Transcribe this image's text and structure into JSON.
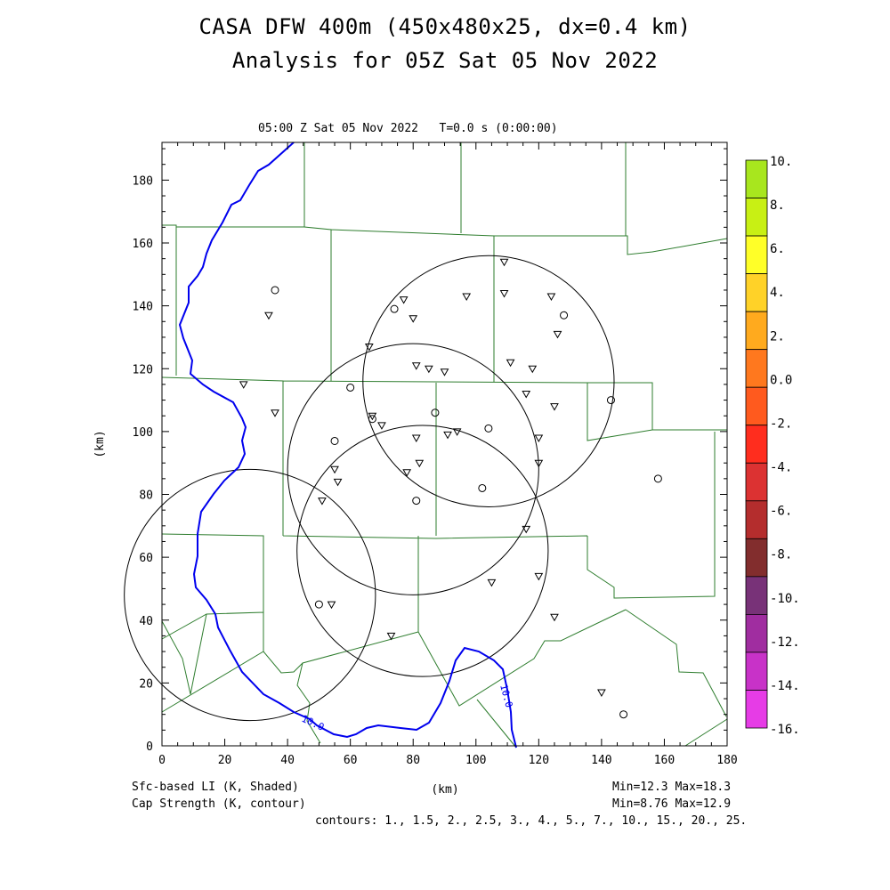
{
  "header": {
    "title_line1": "CASA DFW 400m (450x480x25, dx=0.4 km)",
    "title_line2": "Analysis for 05Z Sat 05 Nov 2022",
    "time_label": "05:00 Z Sat 05 Nov 2022",
    "t_label": "T=0.0 s (0:00:00)"
  },
  "axes": {
    "x_label": "(km)",
    "y_label": "(km)",
    "x_range": [
      0,
      180
    ],
    "y_range": [
      0,
      192
    ],
    "x_ticks": [
      "0",
      "20",
      "40",
      "60",
      "80",
      "100",
      "120",
      "140",
      "160",
      "180"
    ],
    "y_ticks": [
      "0",
      "20",
      "40",
      "60",
      "80",
      "100",
      "120",
      "140",
      "160",
      "180"
    ]
  },
  "colorbar": {
    "labels": [
      "10.",
      "8.",
      "6.",
      "4.",
      "2.",
      "0.0",
      "-2.",
      "-4.",
      "-6.",
      "-8.",
      "-10.",
      "-12.",
      "-14.",
      "-16."
    ],
    "colors": [
      "#a8e61e",
      "#c8f014",
      "#ffff28",
      "#ffd228",
      "#ffaa1e",
      "#ff781e",
      "#ff5a1e",
      "#ff2d1e",
      "#dc3232",
      "#b42d2d",
      "#822d2d",
      "#783278",
      "#a02da0",
      "#c832c8",
      "#e63ce6"
    ]
  },
  "footer": {
    "shaded_label": "Sfc-based LI (K, Shaded)",
    "contour_label": "Cap Strength (K, contour)",
    "li_minmax": "Min=12.3 Max=18.3",
    "cap_minmax": "Min=8.76 Max=12.9",
    "contours": "contours: 1., 1.5, 2., 2.5, 3., 4., 5., 7., 10., 15., 20., 25."
  },
  "map": {
    "contour_labels": [
      "10.0",
      "10.0"
    ],
    "radar_circles_center_km": [
      [
        28,
        48
      ],
      [
        80,
        88
      ],
      [
        104,
        116
      ],
      [
        83,
        62
      ]
    ],
    "radar_circle_radius_km": 40,
    "stations_km": [
      {
        "x": 36,
        "y": 145,
        "m": "c"
      },
      {
        "x": 34,
        "y": 137,
        "m": "t"
      },
      {
        "x": 26,
        "y": 115,
        "m": "t"
      },
      {
        "x": 36,
        "y": 106,
        "m": "t"
      },
      {
        "x": 60,
        "y": 114,
        "m": "c"
      },
      {
        "x": 55,
        "y": 97,
        "m": "c"
      },
      {
        "x": 55,
        "y": 88,
        "m": "t"
      },
      {
        "x": 56,
        "y": 84,
        "m": "t"
      },
      {
        "x": 51,
        "y": 78,
        "m": "t"
      },
      {
        "x": 50,
        "y": 45,
        "m": "c"
      },
      {
        "x": 54,
        "y": 45,
        "m": "t"
      },
      {
        "x": 73,
        "y": 35,
        "m": "t"
      },
      {
        "x": 66,
        "y": 127,
        "m": "t"
      },
      {
        "x": 67,
        "y": 105,
        "m": "t"
      },
      {
        "x": 67,
        "y": 104,
        "m": "c"
      },
      {
        "x": 70,
        "y": 102,
        "m": "t"
      },
      {
        "x": 74,
        "y": 139,
        "m": "c"
      },
      {
        "x": 77,
        "y": 142,
        "m": "t"
      },
      {
        "x": 80,
        "y": 136,
        "m": "t"
      },
      {
        "x": 81,
        "y": 121,
        "m": "t"
      },
      {
        "x": 85,
        "y": 120,
        "m": "t"
      },
      {
        "x": 90,
        "y": 119,
        "m": "t"
      },
      {
        "x": 87,
        "y": 106,
        "m": "c"
      },
      {
        "x": 81,
        "y": 98,
        "m": "t"
      },
      {
        "x": 91,
        "y": 99,
        "m": "t"
      },
      {
        "x": 94,
        "y": 100,
        "m": "t"
      },
      {
        "x": 78,
        "y": 87,
        "m": "t"
      },
      {
        "x": 82,
        "y": 90,
        "m": "t"
      },
      {
        "x": 81,
        "y": 78,
        "m": "c"
      },
      {
        "x": 97,
        "y": 143,
        "m": "t"
      },
      {
        "x": 109,
        "y": 154,
        "m": "t"
      },
      {
        "x": 109,
        "y": 144,
        "m": "t"
      },
      {
        "x": 124,
        "y": 143,
        "m": "t"
      },
      {
        "x": 128,
        "y": 137,
        "m": "c"
      },
      {
        "x": 126,
        "y": 131,
        "m": "t"
      },
      {
        "x": 111,
        "y": 122,
        "m": "t"
      },
      {
        "x": 118,
        "y": 120,
        "m": "t"
      },
      {
        "x": 116,
        "y": 112,
        "m": "t"
      },
      {
        "x": 125,
        "y": 108,
        "m": "t"
      },
      {
        "x": 104,
        "y": 101,
        "m": "c"
      },
      {
        "x": 120,
        "y": 98,
        "m": "t"
      },
      {
        "x": 120,
        "y": 90,
        "m": "t"
      },
      {
        "x": 102,
        "y": 82,
        "m": "c"
      },
      {
        "x": 116,
        "y": 69,
        "m": "t"
      },
      {
        "x": 105,
        "y": 52,
        "m": "t"
      },
      {
        "x": 120,
        "y": 54,
        "m": "t"
      },
      {
        "x": 125,
        "y": 41,
        "m": "t"
      },
      {
        "x": 143,
        "y": 110,
        "m": "c"
      },
      {
        "x": 158,
        "y": 85,
        "m": "c"
      },
      {
        "x": 140,
        "y": 17,
        "m": "t"
      },
      {
        "x": 147,
        "y": 10,
        "m": "c"
      }
    ]
  }
}
